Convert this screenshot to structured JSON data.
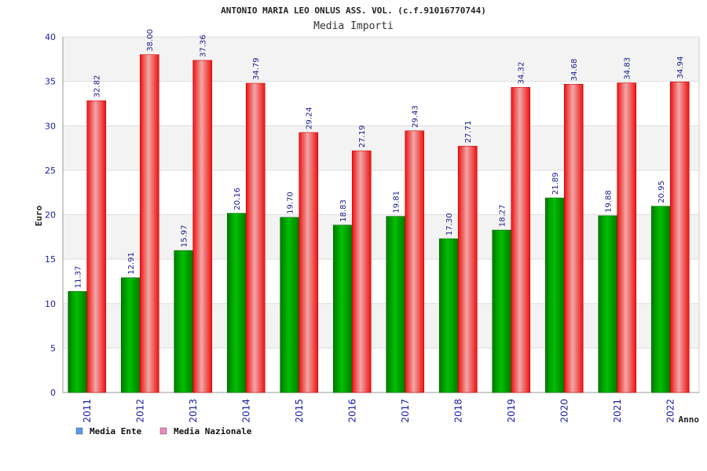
{
  "chart_data": {
    "type": "bar",
    "title": "ANTONIO MARIA LEO ONLUS ASS. VOL. (c.f.91016770744)",
    "subtitle": "Media Importi",
    "xlabel": "Anno",
    "ylabel": "Euro",
    "ylim": [
      0,
      40
    ],
    "yticks": [
      0,
      5,
      10,
      15,
      20,
      25,
      30,
      35,
      40
    ],
    "grid": true,
    "legend_position": "bottom-left",
    "categories": [
      "2011",
      "2012",
      "2013",
      "2014",
      "2015",
      "2016",
      "2017",
      "2018",
      "2019",
      "2020",
      "2021",
      "2022"
    ],
    "series": [
      {
        "name": "Media Ente",
        "color": "#00a000",
        "legend_color": "#5599ee",
        "values": [
          11.37,
          12.91,
          15.97,
          20.16,
          19.7,
          18.83,
          19.81,
          17.3,
          18.27,
          21.89,
          19.88,
          20.95
        ],
        "labels": [
          "11.37",
          "12.91",
          "15.97",
          "20.16",
          "19.70",
          "18.83",
          "19.81",
          "17.30",
          "18.27",
          "21.89",
          "19.88",
          "20.95"
        ]
      },
      {
        "name": "Media Nazionale",
        "color": "#ee1111",
        "legend_color": "#ee88bb",
        "values": [
          32.82,
          38.0,
          37.36,
          34.79,
          29.24,
          27.19,
          29.43,
          27.71,
          34.32,
          34.68,
          34.83,
          34.94
        ],
        "labels": [
          "32.82",
          "38.00",
          "37.36",
          "34.79",
          "29.24",
          "27.19",
          "29.43",
          "27.71",
          "34.32",
          "34.68",
          "34.83",
          "34.94"
        ]
      }
    ]
  }
}
